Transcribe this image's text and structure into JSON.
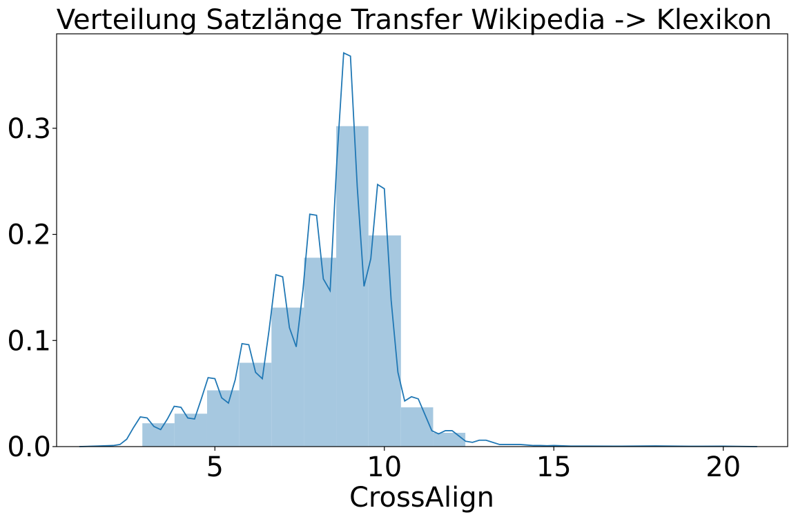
{
  "chart_data": {
    "type": "bar",
    "title": "Verteilung Satzlänge Transfer Wikipedia -> Klexikon",
    "xlabel": "CrossAlign",
    "ylabel": "",
    "xlim": [
      0.33,
      21.9
    ],
    "ylim": [
      0,
      0.389
    ],
    "xticks": [
      5,
      10,
      15,
      20
    ],
    "xtick_labels": [
      "5",
      "10",
      "15",
      "20"
    ],
    "yticks": [
      0.0,
      0.1,
      0.2,
      0.3
    ],
    "ytick_labels": [
      "0.0",
      "0.1",
      "0.2",
      "0.3"
    ],
    "grid": false,
    "colors": {
      "bars": "#a6c8e0",
      "kde": "#1f77b4"
    },
    "histogram": {
      "bins": [
        {
          "x0": 2.86,
          "x1": 3.81,
          "value": 0.022
        },
        {
          "x0": 3.81,
          "x1": 4.77,
          "value": 0.031
        },
        {
          "x0": 4.77,
          "x1": 5.72,
          "value": 0.053
        },
        {
          "x0": 5.72,
          "x1": 6.67,
          "value": 0.079
        },
        {
          "x0": 6.67,
          "x1": 7.63,
          "value": 0.131
        },
        {
          "x0": 7.63,
          "x1": 8.58,
          "value": 0.178
        },
        {
          "x0": 8.58,
          "x1": 9.53,
          "value": 0.302
        },
        {
          "x0": 9.53,
          "x1": 10.49,
          "value": 0.199
        },
        {
          "x0": 10.49,
          "x1": 11.44,
          "value": 0.037
        },
        {
          "x0": 11.44,
          "x1": 12.39,
          "value": 0.013
        }
      ]
    },
    "kde": {
      "x": [
        1.0,
        1.5,
        2.0,
        2.2,
        2.4,
        2.6,
        2.8,
        3.0,
        3.2,
        3.4,
        3.6,
        3.8,
        4.0,
        4.2,
        4.4,
        4.6,
        4.8,
        5.0,
        5.2,
        5.4,
        5.6,
        5.8,
        6.0,
        6.2,
        6.4,
        6.6,
        6.8,
        7.0,
        7.2,
        7.4,
        7.6,
        7.8,
        8.0,
        8.2,
        8.4,
        8.6,
        8.8,
        9.0,
        9.2,
        9.4,
        9.6,
        9.8,
        10.0,
        10.2,
        10.4,
        10.6,
        10.8,
        11.0,
        11.2,
        11.4,
        11.6,
        11.8,
        12.0,
        12.2,
        12.4,
        12.6,
        12.8,
        13.0,
        13.2,
        13.4,
        13.6,
        13.8,
        14.0,
        14.2,
        14.4,
        14.6,
        14.8,
        15.0,
        15.5,
        16.0,
        17.0,
        18.0,
        19.0,
        20.0,
        21.0
      ],
      "y": [
        0.0,
        0.0005,
        0.001,
        0.002,
        0.007,
        0.018,
        0.028,
        0.027,
        0.019,
        0.016,
        0.026,
        0.038,
        0.037,
        0.027,
        0.026,
        0.045,
        0.065,
        0.064,
        0.046,
        0.041,
        0.063,
        0.097,
        0.096,
        0.07,
        0.064,
        0.11,
        0.162,
        0.16,
        0.112,
        0.094,
        0.148,
        0.219,
        0.218,
        0.158,
        0.147,
        0.27,
        0.371,
        0.368,
        0.245,
        0.151,
        0.177,
        0.247,
        0.243,
        0.138,
        0.07,
        0.043,
        0.047,
        0.045,
        0.03,
        0.015,
        0.012,
        0.015,
        0.015,
        0.01,
        0.005,
        0.004,
        0.006,
        0.006,
        0.004,
        0.002,
        0.002,
        0.002,
        0.002,
        0.0015,
        0.001,
        0.001,
        0.0008,
        0.001,
        0.0005,
        0.0005,
        0.0004,
        0.0006,
        0.0003,
        0.0004,
        0.0
      ]
    }
  }
}
